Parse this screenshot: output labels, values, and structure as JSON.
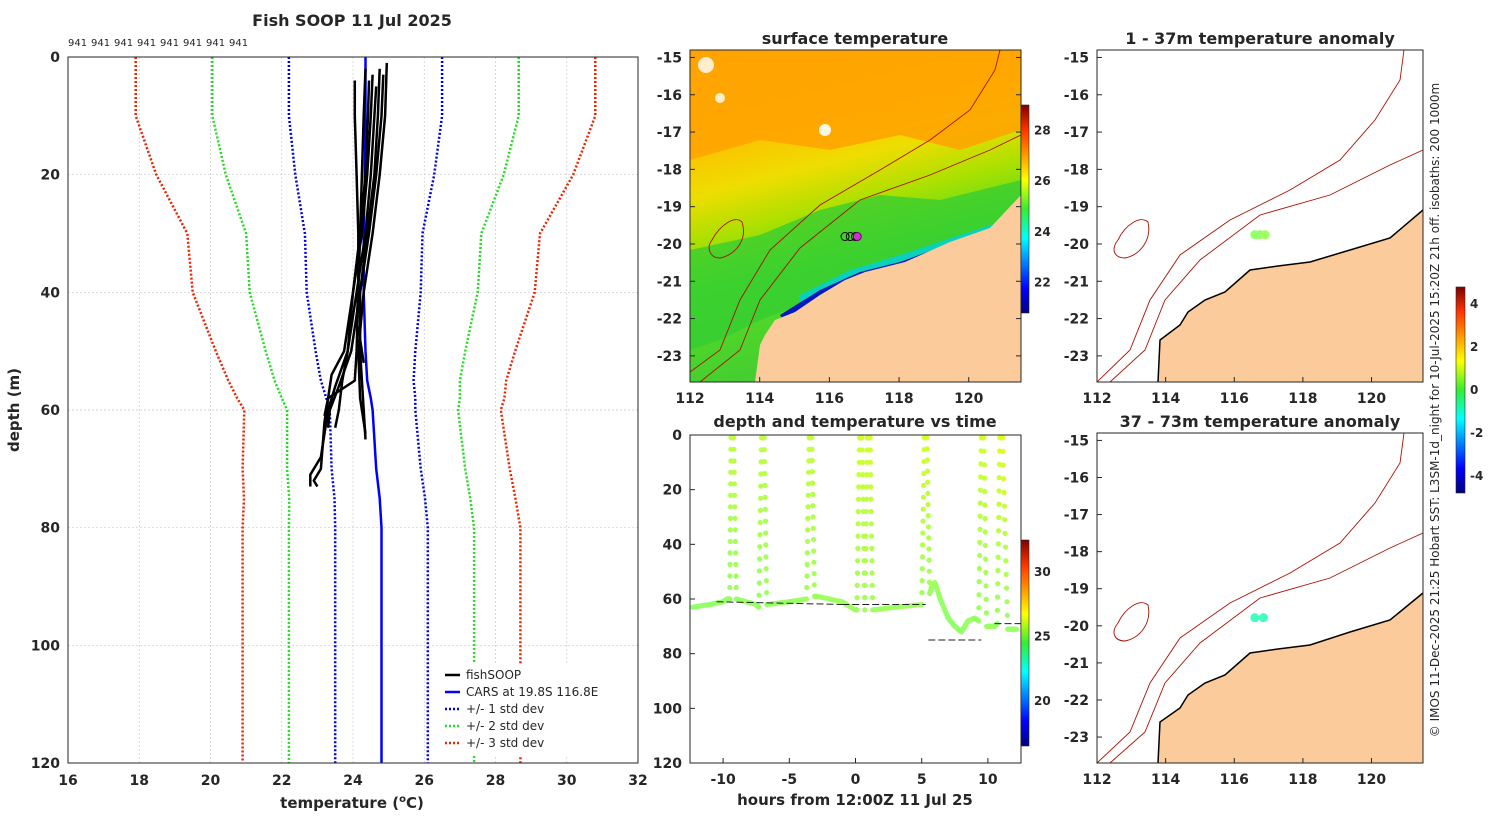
{
  "figure": {
    "side_text": "© IMOS 11-Dec-2025 21:25 Hobart SST: L3SM-1d_night for 10-Jul-2025 15:20Z 21h off. isobaths: 200  1000m"
  },
  "colors": {
    "fishsoop": "#000000",
    "cars": "#0000ff",
    "std1": "#0000e0",
    "std2": "#22dd22",
    "std3": "#ee2200",
    "land": "#fbcb9c",
    "isobath": "#aa1100",
    "glider": "#22cc44"
  },
  "chart_data": [
    {
      "id": "profile",
      "type": "line",
      "title": "Fish SOOP 11 Jul 2025",
      "xlabel": "temperature (",
      "xlabel_unit_sup": "o",
      "xlabel_unit": "C)",
      "ylabel": "depth (m)",
      "xlim": [
        16,
        32
      ],
      "ylim": [
        0,
        120
      ],
      "y_reversed": true,
      "xticks": [
        16,
        18,
        20,
        22,
        24,
        26,
        28,
        30,
        32
      ],
      "yticks": [
        0,
        20,
        40,
        60,
        80,
        100,
        120
      ],
      "top_labels": [
        "941",
        "941",
        "941",
        "941",
        "941",
        "941",
        "941",
        "941"
      ],
      "legend": [
        "fishSOOP",
        "CARS at 19.8S 116.8E",
        "+/- 1 std dev",
        "+/- 2 std dev",
        "+/- 3 std dev"
      ],
      "legend_location": "bottom-right",
      "depth_levels": [
        0,
        10,
        20,
        30,
        40,
        50,
        55,
        58,
        60,
        70,
        75,
        80,
        90,
        100,
        110,
        120
      ],
      "cars_mean": [
        24.35,
        24.35,
        24.33,
        24.3,
        24.3,
        24.35,
        24.4,
        24.5,
        24.55,
        24.65,
        24.75,
        24.8,
        24.8,
        24.8,
        24.8,
        24.8
      ],
      "std_dev": [
        2.15,
        2.15,
        1.95,
        1.65,
        1.6,
        1.4,
        1.3,
        1.25,
        1.2,
        1.25,
        1.27,
        1.3,
        1.3,
        1.3,
        1.3,
        1.3
      ],
      "fishsoop_profiles": [
        {
          "depth": [
            2,
            10,
            20,
            30,
            40,
            50,
            55,
            60,
            65
          ],
          "temp": [
            24.75,
            24.7,
            24.6,
            24.4,
            24.2,
            24.2,
            24.25,
            24.3,
            24.35
          ]
        },
        {
          "depth": [
            1,
            10,
            20,
            30,
            40,
            50,
            58,
            62,
            64
          ],
          "temp": [
            24.95,
            24.9,
            24.75,
            24.55,
            24.3,
            24.15,
            24.2,
            24.3,
            24.35
          ]
        },
        {
          "depth": [
            3,
            10,
            20,
            30,
            40,
            50,
            56,
            60,
            63
          ],
          "temp": [
            24.85,
            24.8,
            24.65,
            24.45,
            24.2,
            23.95,
            23.6,
            23.35,
            23.3
          ]
        },
        {
          "depth": [
            5,
            10,
            20,
            30,
            40,
            50,
            55,
            60,
            63
          ],
          "temp": [
            24.65,
            24.6,
            24.5,
            24.35,
            24.1,
            23.85,
            23.7,
            23.6,
            23.5
          ]
        },
        {
          "depth": [
            3,
            10,
            20,
            30,
            40,
            50,
            54,
            58,
            62,
            66,
            70,
            72,
            73
          ],
          "temp": [
            24.55,
            24.5,
            24.4,
            24.25,
            24.0,
            23.75,
            23.4,
            23.3,
            23.2,
            23.15,
            23.1,
            22.9,
            23.0
          ]
        },
        {
          "depth": [
            4,
            10,
            20,
            30,
            40,
            50,
            56,
            60,
            64,
            68,
            71,
            73
          ],
          "temp": [
            24.45,
            24.42,
            24.35,
            24.2,
            24.0,
            23.85,
            23.5,
            23.3,
            23.2,
            23.1,
            22.8,
            22.8
          ]
        },
        {
          "depth": [
            2,
            10,
            20,
            30,
            40,
            50,
            55,
            58,
            61
          ],
          "temp": [
            24.35,
            24.3,
            24.25,
            24.2,
            24.15,
            24.1,
            24.05,
            23.3,
            23.2
          ]
        },
        {
          "depth": [
            4,
            10,
            20,
            30,
            40,
            45,
            48,
            52
          ],
          "temp": [
            24.05,
            24.05,
            24.1,
            24.15,
            24.15,
            24.1,
            24.2,
            24.3
          ]
        }
      ]
    },
    {
      "id": "sst_map",
      "type": "heatmap",
      "title": "surface temperature",
      "xlim": [
        112,
        121.5
      ],
      "ylim": [
        -23.7,
        -14.8
      ],
      "xticks": [
        112,
        114,
        116,
        118,
        120
      ],
      "yticks": [
        -15,
        -16,
        -17,
        -18,
        -19,
        -20,
        -21,
        -22,
        -23
      ],
      "colorbar_label_ticks": [
        22,
        24,
        26,
        28
      ],
      "colorbar_range": [
        20.8,
        29
      ],
      "glider_position": [
        116.8,
        -19.8
      ]
    },
    {
      "id": "depth_time",
      "type": "scatter",
      "title": "depth and temperature vs time",
      "xlabel": "hours from 12:00Z 11 Jul 25",
      "xlim": [
        -12.5,
        12.5
      ],
      "ylim": [
        0,
        120
      ],
      "y_reversed": true,
      "xticks": [
        -10,
        -5,
        0,
        5,
        10
      ],
      "yticks": [
        0,
        20,
        40,
        60,
        80,
        100,
        120
      ],
      "colorbar_label_ticks": [
        20,
        25,
        30
      ],
      "colorbar_range": [
        16.5,
        32.5
      ],
      "time": [
        -12.3,
        -11,
        -10,
        -9.7,
        -9.5,
        -9.4,
        -9.2,
        -9.0,
        -7.5,
        -7.3,
        -7.1,
        -6.9,
        -6.7,
        -5,
        -3.7,
        -3.5,
        -3.3,
        -3.1,
        -2.9,
        -1,
        0,
        0.1,
        0.3,
        0.5,
        0.7,
        0.9,
        1.1,
        1.3,
        3,
        5,
        5.2,
        5.4,
        5.6,
        5.8,
        6,
        6.4,
        7,
        7.5,
        8,
        8.5,
        9,
        9.3,
        9.5,
        9.7,
        9.9,
        10.2,
        10.5,
        10.7,
        10.9,
        11.1,
        11.5,
        12.2
      ],
      "depth": [
        63,
        62,
        61,
        60,
        60,
        1,
        1,
        60,
        62,
        63,
        1,
        1,
        62,
        61,
        60,
        1,
        1,
        59,
        59,
        61,
        64,
        64,
        1,
        1,
        64,
        1,
        1,
        64,
        63,
        62,
        1,
        1,
        58,
        55,
        54,
        60,
        67,
        70,
        72,
        68,
        67,
        68,
        1,
        1,
        70,
        70,
        70,
        69,
        1,
        1,
        71,
        71
      ],
      "temperature": [
        24.8,
        24.8,
        24.9,
        24.9,
        24.9,
        25.5,
        25.5,
        24.9,
        24.9,
        24.9,
        25.5,
        25.5,
        24.9,
        24.9,
        25.0,
        25.6,
        25.6,
        25.0,
        25.0,
        25.0,
        25.0,
        25.0,
        25.8,
        25.8,
        25.0,
        25.8,
        25.8,
        25.0,
        25.0,
        25.0,
        25.8,
        25.8,
        25.0,
        25.0,
        25.0,
        24.9,
        24.8,
        24.8,
        24.8,
        24.9,
        24.9,
        24.9,
        25.8,
        25.8,
        24.9,
        24.9,
        24.9,
        24.9,
        26.0,
        26.0,
        24.9,
        24.9
      ],
      "mld_segments": [
        {
          "t0": -10.5,
          "t1": -1.0,
          "d0": 61,
          "d1": 62
        },
        {
          "t0": -1.0,
          "t1": 5.3,
          "d0": 62,
          "d1": 62
        },
        {
          "t0": 5.5,
          "t1": 9.5,
          "d0": 75,
          "d1": 75
        },
        {
          "t0": 10.5,
          "t1": 12.5,
          "d0": 69,
          "d1": 69
        }
      ]
    },
    {
      "id": "anom_1_37",
      "type": "scatter",
      "title": "1 - 37m temperature anomaly",
      "xlim": [
        112,
        121.5
      ],
      "ylim": [
        -23.7,
        -14.8
      ],
      "xticks": [
        112,
        114,
        116,
        118,
        120
      ],
      "yticks": [
        -15,
        -16,
        -17,
        -18,
        -19,
        -20,
        -21,
        -22,
        -23
      ],
      "points": [
        [
          116.6,
          -19.75,
          0.2
        ],
        [
          116.75,
          -19.75,
          0.2
        ],
        [
          116.9,
          -19.75,
          0.3
        ]
      ]
    },
    {
      "id": "anom_37_73",
      "type": "scatter",
      "title": "37 - 73m temperature anomaly",
      "xlim": [
        112,
        121.5
      ],
      "ylim": [
        -23.7,
        -14.8
      ],
      "xticks": [
        112,
        114,
        116,
        118,
        120
      ],
      "yticks": [
        -15,
        -16,
        -17,
        -18,
        -19,
        -20,
        -21,
        -22,
        -23
      ],
      "points": [
        [
          116.6,
          -19.78,
          -0.6
        ],
        [
          116.85,
          -19.78,
          -0.6
        ]
      ]
    },
    {
      "id": "anomaly_colorbar",
      "type": "heatmap",
      "colorbar_label_ticks": [
        4,
        2,
        0,
        -2,
        -4
      ],
      "colorbar_range": [
        -4.8,
        4.8
      ]
    }
  ]
}
